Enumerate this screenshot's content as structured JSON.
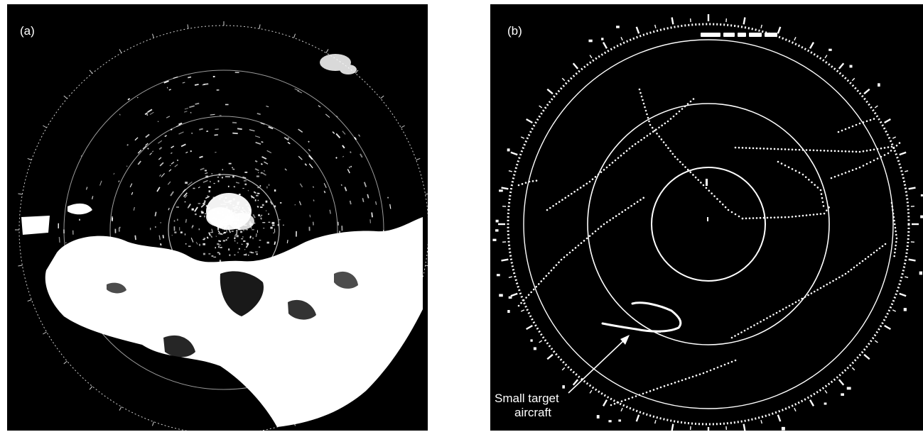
{
  "panels": [
    {
      "label": "(a)",
      "description_name": "radar-ppi-with-weather-clutter"
    },
    {
      "label": "(b)",
      "description_name": "radar-ppi-with-aircraft-tracks",
      "annotation": {
        "line1": "Small target",
        "line2": "aircraft"
      }
    }
  ],
  "colors": {
    "background": "#000000",
    "echo": "#ffffff",
    "page": "#ffffff"
  }
}
